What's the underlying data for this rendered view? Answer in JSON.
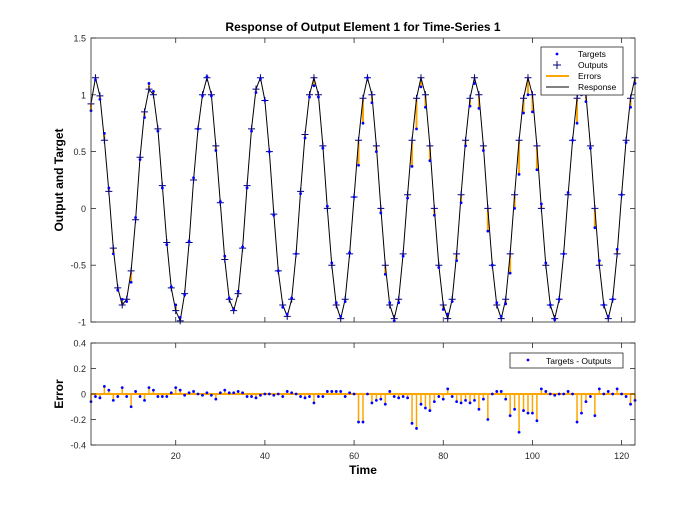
{
  "chart_data": [
    {
      "type": "line",
      "title": "Response of Output Element 1 for Time-Series 1",
      "ylabel": "Output and Target",
      "xlim": [
        1,
        123
      ],
      "ylim": [
        -1,
        1.5
      ],
      "yticks": [
        -1,
        -0.5,
        0,
        0.5,
        1,
        1.5
      ],
      "xticks": [
        20,
        40,
        60,
        80,
        100,
        120
      ],
      "show_xtick_labels": false,
      "grid": false,
      "legend": {
        "placement": "top-right",
        "entries": [
          "Targets",
          "Outputs",
          "Errors",
          "Response"
        ]
      },
      "colors": {
        "targets": "#0000ff",
        "outputs": "#000080",
        "errors": "#ffa500",
        "response": "#000000"
      },
      "x": [
        1,
        2,
        3,
        4,
        5,
        6,
        7,
        8,
        9,
        10,
        11,
        12,
        13,
        14,
        15,
        16,
        17,
        18,
        19,
        20,
        21,
        22,
        23,
        24,
        25,
        26,
        27,
        28,
        29,
        30,
        31,
        32,
        33,
        34,
        35,
        36,
        37,
        38,
        39,
        40,
        41,
        42,
        43,
        44,
        45,
        46,
        47,
        48,
        49,
        50,
        51,
        52,
        53,
        54,
        55,
        56,
        57,
        58,
        59,
        60,
        61,
        62,
        63,
        64,
        65,
        66,
        67,
        68,
        69,
        70,
        71,
        72,
        73,
        74,
        75,
        76,
        77,
        78,
        79,
        80,
        81,
        82,
        83,
        84,
        85,
        86,
        87,
        88,
        89,
        90,
        91,
        92,
        93,
        94,
        95,
        96,
        97,
        98,
        99,
        100,
        101,
        102,
        103,
        104,
        105,
        106,
        107,
        108,
        109,
        110,
        111,
        112,
        113,
        114,
        115,
        116,
        117,
        118,
        119,
        120,
        121,
        122,
        123
      ],
      "outputs": [
        0.92,
        1.15,
        0.99,
        0.6,
        0.15,
        -0.35,
        -0.7,
        -0.85,
        -0.8,
        -0.55,
        -0.1,
        0.45,
        0.85,
        1.05,
        1.0,
        0.7,
        0.2,
        -0.3,
        -0.7,
        -0.9,
        -0.99,
        -0.75,
        -0.3,
        0.25,
        0.7,
        1.0,
        1.15,
        1.0,
        0.55,
        0.05,
        -0.45,
        -0.8,
        -0.9,
        -0.75,
        -0.35,
        0.2,
        0.7,
        1.05,
        1.15,
        0.95,
        0.5,
        -0.05,
        -0.55,
        -0.85,
        -0.95,
        -0.8,
        -0.4,
        0.15,
        0.65,
        1.0,
        1.15,
        1.0,
        0.55,
        0.0,
        -0.5,
        -0.85,
        -0.97,
        -0.8,
        -0.4,
        0.1,
        0.6,
        0.97,
        1.15,
        1.0,
        0.55,
        0.0,
        -0.5,
        -0.85,
        -0.97,
        -0.8,
        -0.4,
        0.12,
        0.6,
        0.97,
        1.15,
        1.0,
        0.55,
        0.0,
        -0.5,
        -0.85,
        -0.97,
        -0.8,
        -0.4,
        0.12,
        0.6,
        0.97,
        1.15,
        1.0,
        0.55,
        0.0,
        -0.5,
        -0.85,
        -0.97,
        -0.8,
        -0.4,
        0.12,
        0.6,
        0.97,
        1.15,
        1.0,
        0.55,
        0.0,
        -0.5,
        -0.85,
        -0.97,
        -0.8,
        -0.4,
        0.12,
        0.6,
        0.97,
        1.15,
        1.0,
        0.55,
        0.0,
        -0.5,
        -0.85,
        -0.97,
        -0.8,
        -0.4,
        0.12,
        0.6,
        0.97,
        1.15,
        1.0,
        0.55
      ],
      "targets": [
        0.86,
        1.13,
        0.96,
        0.66,
        0.18,
        -0.4,
        -0.72,
        -0.8,
        -0.82,
        -0.65,
        -0.08,
        0.43,
        0.8,
        1.1,
        1.03,
        0.68,
        0.18,
        -0.32,
        -0.69,
        -0.85,
        -0.96,
        -0.76,
        -0.29,
        0.27,
        0.7,
        0.99,
        1.16,
        0.99,
        0.51,
        0.06,
        -0.42,
        -0.79,
        -0.89,
        -0.73,
        -0.34,
        0.18,
        0.68,
        1.02,
        1.14,
        0.95,
        0.5,
        -0.06,
        -0.55,
        -0.87,
        -0.93,
        -0.79,
        -0.4,
        0.13,
        0.62,
        0.98,
        1.08,
        0.98,
        0.53,
        0.02,
        -0.48,
        -0.83,
        -0.95,
        -0.82,
        -0.39,
        0.1,
        0.38,
        0.75,
        1.15,
        0.93,
        0.5,
        -0.04,
        -0.58,
        -0.83,
        -0.99,
        -0.83,
        -0.42,
        0.09,
        0.37,
        0.7,
        1.07,
        0.89,
        0.42,
        -0.06,
        -0.52,
        -0.89,
        -0.93,
        -0.82,
        -0.46,
        0.05,
        0.55,
        0.9,
        1.1,
        0.88,
        0.51,
        -0.2,
        -0.5,
        -0.83,
        -0.95,
        -0.84,
        -0.57,
        0.0,
        0.3,
        0.84,
        1.0,
        0.85,
        0.34,
        0.04,
        -0.48,
        -0.85,
        -0.98,
        -0.8,
        -0.4,
        0.14,
        0.6,
        0.75,
        1.0,
        0.94,
        0.53,
        -0.17,
        -0.46,
        -0.85,
        -0.95,
        -0.8,
        -0.36,
        0.12,
        0.58,
        0.89,
        1.1,
        0.92,
        0.52
      ]
    },
    {
      "type": "scatter",
      "xlabel": "Time",
      "ylabel": "Error",
      "xlim": [
        1,
        123
      ],
      "ylim": [
        -0.4,
        0.4
      ],
      "yticks": [
        -0.4,
        -0.2,
        0,
        0.2,
        0.4
      ],
      "xticks": [
        20,
        40,
        60,
        80,
        100,
        120
      ],
      "grid": false,
      "legend": {
        "placement": "top-right",
        "entries": [
          "Targets - Outputs"
        ]
      },
      "colors": {
        "markers": "#0000ff",
        "stems": "#ffa500",
        "zero_line": "#ffa500"
      },
      "x": [
        1,
        2,
        3,
        4,
        5,
        6,
        7,
        8,
        9,
        10,
        11,
        12,
        13,
        14,
        15,
        16,
        17,
        18,
        19,
        20,
        21,
        22,
        23,
        24,
        25,
        26,
        27,
        28,
        29,
        30,
        31,
        32,
        33,
        34,
        35,
        36,
        37,
        38,
        39,
        40,
        41,
        42,
        43,
        44,
        45,
        46,
        47,
        48,
        49,
        50,
        51,
        52,
        53,
        54,
        55,
        56,
        57,
        58,
        59,
        60,
        61,
        62,
        63,
        64,
        65,
        66,
        67,
        68,
        69,
        70,
        71,
        72,
        73,
        74,
        75,
        76,
        77,
        78,
        79,
        80,
        81,
        82,
        83,
        84,
        85,
        86,
        87,
        88,
        89,
        90,
        91,
        92,
        93,
        94,
        95,
        96,
        97,
        98,
        99,
        100,
        101,
        102,
        103,
        104,
        105,
        106,
        107,
        108,
        109,
        110,
        111,
        112,
        113,
        114,
        115,
        116,
        117,
        118,
        119,
        120,
        121,
        122,
        123
      ],
      "values": [
        -0.06,
        -0.02,
        -0.03,
        0.06,
        0.03,
        -0.05,
        -0.02,
        0.05,
        -0.02,
        -0.1,
        0.02,
        -0.02,
        -0.05,
        0.05,
        0.03,
        -0.02,
        -0.02,
        -0.02,
        0.01,
        0.05,
        0.03,
        -0.01,
        0.01,
        0.02,
        0.0,
        -0.01,
        0.01,
        -0.01,
        -0.04,
        0.01,
        0.03,
        0.01,
        0.01,
        0.02,
        0.01,
        -0.02,
        -0.02,
        -0.03,
        -0.01,
        0.0,
        0.0,
        -0.01,
        0.0,
        -0.02,
        0.02,
        0.01,
        0.0,
        -0.02,
        -0.03,
        -0.02,
        -0.07,
        -0.02,
        -0.02,
        0.02,
        0.02,
        0.02,
        0.02,
        -0.02,
        0.01,
        0.0,
        -0.22,
        -0.22,
        0.0,
        -0.07,
        -0.05,
        -0.04,
        -0.08,
        0.02,
        -0.02,
        -0.03,
        -0.02,
        -0.03,
        -0.23,
        -0.27,
        -0.08,
        -0.11,
        -0.13,
        -0.06,
        -0.02,
        -0.04,
        0.04,
        -0.02,
        -0.06,
        -0.07,
        -0.05,
        -0.07,
        -0.05,
        -0.12,
        -0.04,
        -0.2,
        0.0,
        0.02,
        0.02,
        -0.04,
        -0.17,
        -0.12,
        -0.3,
        -0.13,
        -0.15,
        -0.15,
        -0.21,
        0.04,
        0.02,
        0.0,
        -0.01,
        0.0,
        0.0,
        0.02,
        0.0,
        -0.22,
        -0.15,
        -0.06,
        -0.02,
        -0.17,
        0.04,
        0.0,
        0.02,
        0.0,
        0.04,
        0.0,
        -0.02,
        -0.08,
        -0.05
      ]
    }
  ]
}
